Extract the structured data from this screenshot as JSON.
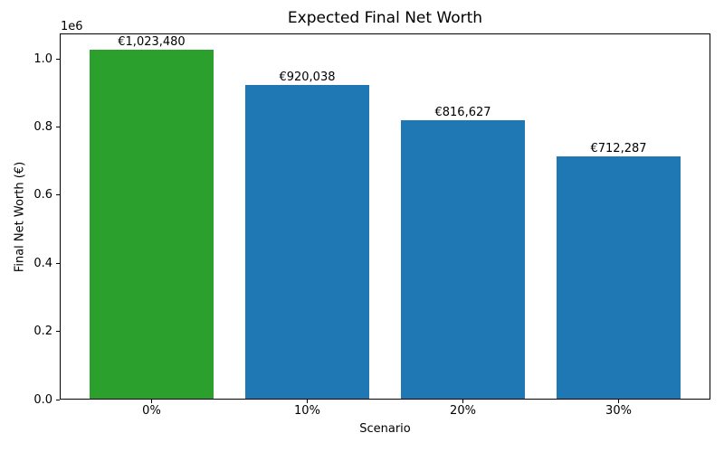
{
  "chart_data": {
    "type": "bar",
    "title": "Expected Final Net Worth",
    "xlabel": "Scenario",
    "ylabel": "Final Net Worth (€)",
    "offset_text": "1e6",
    "categories": [
      "0%",
      "10%",
      "20%",
      "30%"
    ],
    "values": [
      1023480,
      920038,
      816627,
      712287
    ],
    "bar_labels": [
      "€1,023,480",
      "€920,038",
      "€816,627",
      "€712,287"
    ],
    "bar_colors": [
      "#2ca02c",
      "#1f77b4",
      "#1f77b4",
      "#1f77b4"
    ],
    "ylim": [
      0,
      1074654
    ],
    "yticks": [
      0,
      200000,
      400000,
      600000,
      800000,
      1000000
    ],
    "ytick_labels": [
      "0.0",
      "0.2",
      "0.4",
      "0.6",
      "0.8",
      "1.0"
    ],
    "grid": false,
    "legend_position": "none",
    "background_color": "#ffffff",
    "text_color": "#000000"
  }
}
